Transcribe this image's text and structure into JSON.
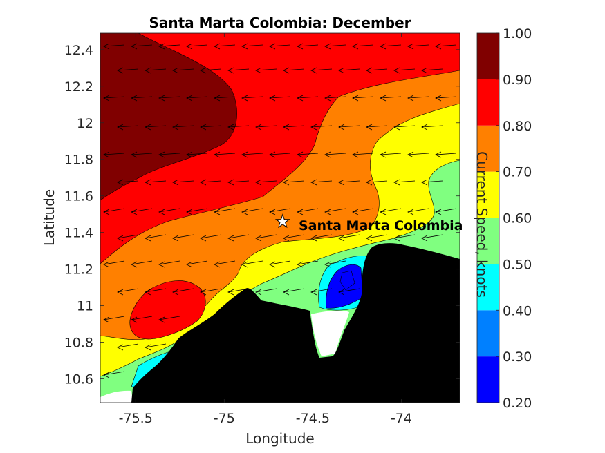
{
  "chart_data": {
    "type": "contour",
    "title": "Santa Marta Colombia: December",
    "xlabel": "Longitude",
    "ylabel": "Latitude",
    "xlim": [
      -75.7,
      -73.67
    ],
    "ylim": [
      10.47,
      12.49
    ],
    "xticks": [
      -75.5,
      -75,
      -74.5,
      -74
    ],
    "xtick_labels": [
      "-75.5",
      "-75",
      "-74.5",
      "-74"
    ],
    "yticks": [
      10.6,
      10.8,
      11,
      11.2,
      11.4,
      11.6,
      11.8,
      12,
      12.2,
      12.4
    ],
    "ytick_labels": [
      "10.6",
      "10.8",
      "11",
      "11.2",
      "11.4",
      "11.6",
      "11.8",
      "12",
      "12.2",
      "12.4"
    ],
    "colorbar": {
      "label": "Current Speed, knots",
      "levels": [
        0.2,
        0.3,
        0.4,
        0.5,
        0.6,
        0.7,
        0.8,
        0.9,
        1.0
      ],
      "tick_labels": [
        "0.20",
        "0.30",
        "0.40",
        "0.50",
        "0.60",
        "0.70",
        "0.80",
        "0.90",
        "1.00"
      ],
      "colors": [
        "#0000ff",
        "#0080ff",
        "#00ffff",
        "#80ff80",
        "#ffff00",
        "#ff8000",
        "#ff0000",
        "#800000"
      ]
    },
    "land_color": "#000000",
    "station": {
      "name": "Santa Marta Colombia",
      "lon": -74.67,
      "lat": 11.46,
      "marker": "star"
    },
    "current_direction": "west",
    "grid": false
  }
}
